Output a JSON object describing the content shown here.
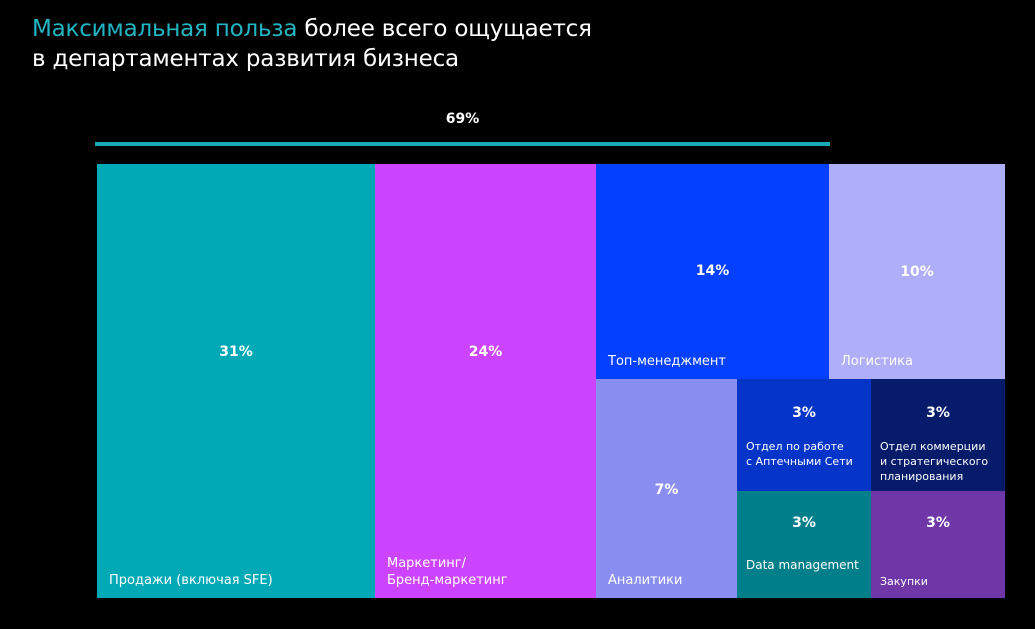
{
  "title": {
    "highlight": "Максимальная польза",
    "line1_rest": " более всего ощущается",
    "line2": "в департаментах развития бизнеса"
  },
  "colors": {
    "accent": "#22b6c4",
    "background": "#000000"
  },
  "chart_data": {
    "type": "treemap",
    "bracket": {
      "label": "69%",
      "value": 69,
      "covers": [
        "Продажи (включая SFE)",
        "Маркетинг/ Бренд-маркетинг",
        "Топ-менеджмент"
      ]
    },
    "tiles": [
      {
        "label": "Продажи (включая SFE)",
        "value": 31,
        "value_label": "31%",
        "color": "#00a9b5"
      },
      {
        "label": "Маркетинг/\nБренд-маркетинг",
        "value": 24,
        "value_label": "24%",
        "color": "#cc44ff"
      },
      {
        "label": "Топ-менеджмент",
        "value": 14,
        "value_label": "14%",
        "color": "#0440ff"
      },
      {
        "label": "Логистика",
        "value": 10,
        "value_label": "10%",
        "color": "#aeaff8"
      },
      {
        "label": "Аналитики",
        "value": 7,
        "value_label": "7%",
        "color": "#8b8ef1"
      },
      {
        "label": "Отдел по работе\nс Аптечными Сети",
        "value": 3,
        "value_label": "3%",
        "color": "#0534c8"
      },
      {
        "label": "Отдел коммерции\nи стратегического\nпланирования",
        "value": 3,
        "value_label": "3%",
        "color": "#061b6a"
      },
      {
        "label": "Data management",
        "value": 3,
        "value_label": "3%",
        "color": "#007f8a"
      },
      {
        "label": "Закупки",
        "value": 3,
        "value_label": "3%",
        "color": "#6f36a8"
      }
    ]
  }
}
